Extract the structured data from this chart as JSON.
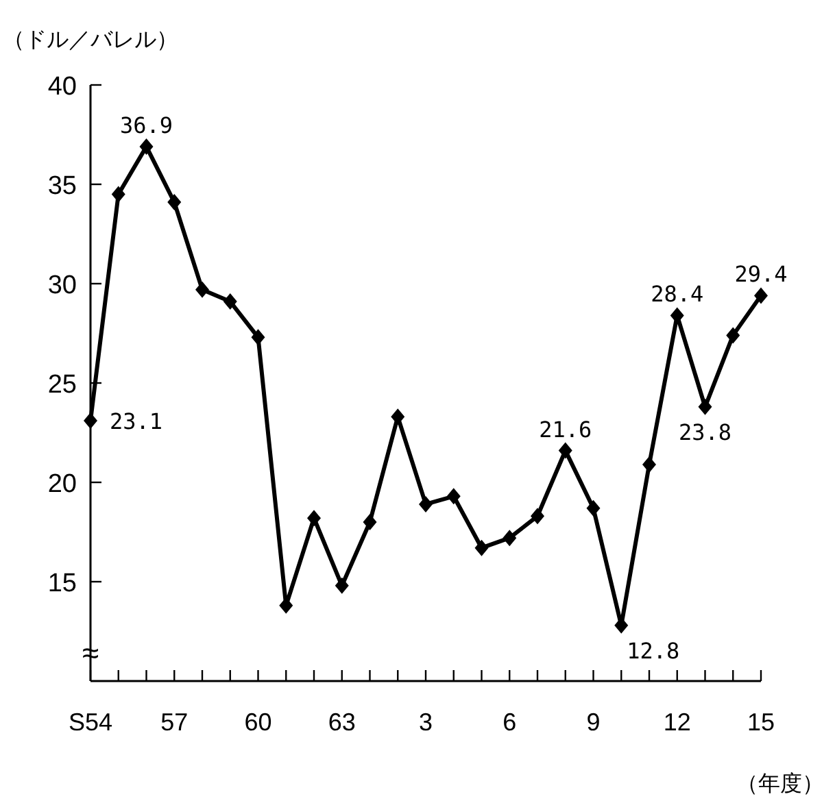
{
  "chart_data": {
    "type": "line",
    "ylabel": "（ドル／バレル）",
    "xlabel": "（年度）",
    "categories": [
      "S54",
      null,
      null,
      "57",
      null,
      null,
      "60",
      null,
      null,
      "63",
      null,
      null,
      "3",
      null,
      null,
      "6",
      null,
      null,
      "9",
      null,
      null,
      "12",
      null,
      null,
      "15"
    ],
    "series": [
      {
        "color": "#000000",
        "values": [
          23.1,
          34.5,
          36.9,
          34.1,
          29.7,
          29.1,
          27.3,
          13.8,
          18.2,
          14.8,
          18.0,
          23.3,
          18.9,
          19.3,
          16.7,
          17.2,
          18.3,
          21.6,
          18.7,
          12.8,
          20.9,
          28.4,
          23.8,
          27.4,
          29.4
        ],
        "value_labels": [
          "23.1",
          null,
          "36.9",
          null,
          null,
          null,
          null,
          null,
          null,
          null,
          null,
          null,
          null,
          null,
          null,
          null,
          null,
          "21.6",
          null,
          "12.8",
          null,
          "28.4",
          "23.8",
          null,
          "29.4"
        ]
      }
    ],
    "ylim": [
      10,
      40
    ],
    "yticks": [
      15,
      20,
      25,
      30,
      35,
      40
    ],
    "marker": "diamond",
    "line_style": "solid",
    "grid": false,
    "annotations": [
      "≈"
    ]
  }
}
